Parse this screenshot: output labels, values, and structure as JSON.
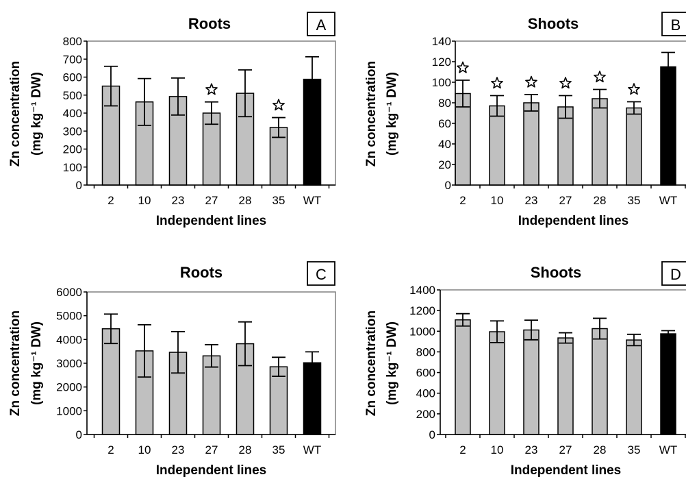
{
  "figure": {
    "colors": {
      "bar": "#c0c0c0",
      "control_bar": "#000000",
      "axis": "#000000",
      "frame": "#808080"
    },
    "marker_icon": "star-icon"
  },
  "chart_data": [
    {
      "panel": "A",
      "type": "bar",
      "title": "Roots",
      "xlabel": "Independent lines",
      "ylabel_line1": "Zn concentration",
      "ylabel_line2": "(mg kg⁻¹ DW)",
      "categories": [
        "2",
        "10",
        "23",
        "27",
        "28",
        "35",
        "WT"
      ],
      "values": [
        550,
        462,
        492,
        400,
        510,
        320,
        588
      ],
      "errors": [
        110,
        130,
        103,
        62,
        130,
        55,
        125
      ],
      "significant": [
        false,
        false,
        false,
        true,
        false,
        true,
        false
      ],
      "ylim": [
        0,
        800
      ],
      "yticks": [
        "0",
        "100",
        "200",
        "300",
        "400",
        "500",
        "600",
        "700",
        "800"
      ],
      "grid": false
    },
    {
      "panel": "B",
      "type": "bar",
      "title": "Shoots",
      "xlabel": "Independent lines",
      "ylabel_line1": "Zn concentration",
      "ylabel_line2": "(mg kg⁻¹ DW)",
      "categories": [
        "2",
        "10",
        "23",
        "27",
        "28",
        "35",
        "WT"
      ],
      "values": [
        89,
        77,
        80,
        76,
        84,
        75,
        115
      ],
      "errors": [
        13,
        10,
        8,
        11,
        9,
        6,
        14
      ],
      "significant": [
        true,
        true,
        true,
        true,
        true,
        true,
        false
      ],
      "ylim": [
        0,
        140
      ],
      "yticks": [
        "0",
        "20",
        "40",
        "60",
        "80",
        "100",
        "120",
        "140"
      ],
      "grid": false
    },
    {
      "panel": "C",
      "type": "bar",
      "title": "Roots",
      "xlabel": "Independent lines",
      "ylabel_line1": "Zn concentration",
      "ylabel_line2": "(mg kg⁻¹ DW)",
      "categories": [
        "2",
        "10",
        "23",
        "27",
        "28",
        "35",
        "WT"
      ],
      "values": [
        4450,
        3520,
        3460,
        3310,
        3820,
        2850,
        3020
      ],
      "errors": [
        620,
        1100,
        870,
        470,
        920,
        400,
        460
      ],
      "significant": [
        false,
        false,
        false,
        false,
        false,
        false,
        false
      ],
      "ylim": [
        0,
        6000
      ],
      "yticks": [
        "0",
        "1000",
        "2000",
        "3000",
        "4000",
        "5000",
        "6000"
      ],
      "grid": false
    },
    {
      "panel": "D",
      "type": "bar",
      "title": "Shoots",
      "xlabel": "Independent lines",
      "ylabel_line1": "Zn concentration",
      "ylabel_line2": "(mg kg⁻¹ DW)",
      "categories": [
        "2",
        "10",
        "23",
        "27",
        "28",
        "35",
        "WT"
      ],
      "values": [
        1110,
        995,
        1012,
        935,
        1025,
        915,
        975
      ],
      "errors": [
        60,
        105,
        95,
        50,
        100,
        55,
        30
      ],
      "significant": [
        false,
        false,
        false,
        false,
        false,
        false,
        false
      ],
      "ylim": [
        0,
        1400
      ],
      "yticks": [
        "0",
        "200",
        "400",
        "600",
        "800",
        "1000",
        "1200",
        "1400"
      ],
      "grid": false
    }
  ]
}
